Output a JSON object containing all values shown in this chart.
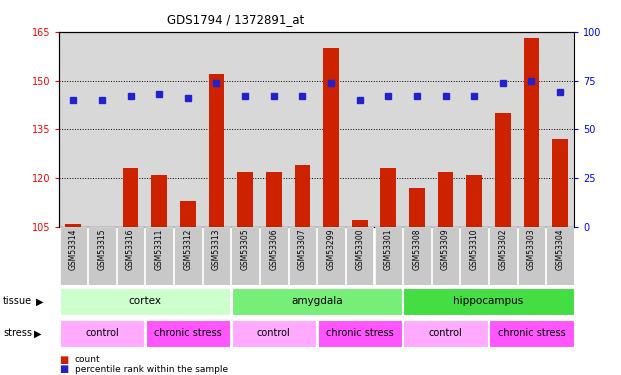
{
  "title": "GDS1794 / 1372891_at",
  "samples": [
    "GSM53314",
    "GSM53315",
    "GSM53316",
    "GSM53311",
    "GSM53312",
    "GSM53313",
    "GSM53305",
    "GSM53306",
    "GSM53307",
    "GSM53299",
    "GSM53300",
    "GSM53301",
    "GSM53308",
    "GSM53309",
    "GSM53310",
    "GSM53302",
    "GSM53303",
    "GSM53304"
  ],
  "counts": [
    106,
    105,
    123,
    121,
    113,
    152,
    122,
    122,
    124,
    160,
    107,
    123,
    117,
    122,
    121,
    140,
    163,
    132
  ],
  "percentiles": [
    65,
    65,
    67,
    68,
    66,
    74,
    67,
    67,
    67,
    74,
    65,
    67,
    67,
    67,
    67,
    74,
    75,
    69
  ],
  "ylim_left": [
    105,
    165
  ],
  "ylim_right": [
    0,
    100
  ],
  "yticks_left": [
    105,
    120,
    135,
    150,
    165
  ],
  "yticks_right": [
    0,
    25,
    50,
    75,
    100
  ],
  "bar_color": "#CC2200",
  "dot_color": "#2222CC",
  "tissue_groups": [
    {
      "label": "cortex",
      "start": 0,
      "end": 6,
      "color": "#CCFFCC"
    },
    {
      "label": "amygdala",
      "start": 6,
      "end": 12,
      "color": "#77EE77"
    },
    {
      "label": "hippocampus",
      "start": 12,
      "end": 18,
      "color": "#44DD44"
    }
  ],
  "stress_groups": [
    {
      "label": "control",
      "start": 0,
      "end": 3,
      "color": "#FFAAFF"
    },
    {
      "label": "chronic stress",
      "start": 3,
      "end": 6,
      "color": "#FF55FF"
    },
    {
      "label": "control",
      "start": 6,
      "end": 9,
      "color": "#FFAAFF"
    },
    {
      "label": "chronic stress",
      "start": 9,
      "end": 12,
      "color": "#FF55FF"
    },
    {
      "label": "control",
      "start": 12,
      "end": 15,
      "color": "#FFAAFF"
    },
    {
      "label": "chronic stress",
      "start": 15,
      "end": 18,
      "color": "#FF55FF"
    }
  ],
  "legend_count": "count",
  "legend_pct": "percentile rank within the sample",
  "background_color": "#D8D8D8",
  "grid_yticks": [
    120,
    135,
    150
  ],
  "label_area_color": "#E8E8E8"
}
